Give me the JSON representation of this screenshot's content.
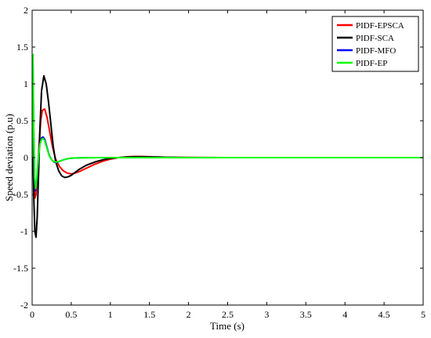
{
  "chart_data": {
    "type": "line",
    "title": "",
    "xlabel": "Time (s)",
    "ylabel": "Speed deviation (p.u)",
    "xlim": [
      0,
      5
    ],
    "ylim": [
      -2,
      2
    ],
    "xticks": [
      0,
      0.5,
      1,
      1.5,
      2,
      2.5,
      3,
      3.5,
      4,
      4.5,
      5
    ],
    "yticks": [
      -2,
      -1.5,
      -1,
      -0.5,
      0,
      0.5,
      1,
      1.5,
      2
    ],
    "xtick_labels": [
      "0",
      "0.5",
      "1",
      "1.5",
      "2",
      "2.5",
      "3",
      "3.5",
      "4",
      "4.5",
      "5"
    ],
    "ytick_labels": [
      "-2",
      "-1.5",
      "-1",
      "-0.5",
      "0",
      "0.5",
      "1",
      "1.5",
      "2"
    ],
    "grid": false,
    "legend_position": "top-right",
    "series": [
      {
        "name": "PIDF-EPSCA",
        "color": "#ff0000",
        "x": [
          0,
          0.01,
          0.02,
          0.035,
          0.05,
          0.07,
          0.09,
          0.11,
          0.13,
          0.16,
          0.19,
          0.22,
          0.26,
          0.3,
          0.35,
          0.4,
          0.45,
          0.5,
          0.55,
          0.6,
          0.7,
          0.8,
          0.9,
          1.0,
          1.1,
          1.2,
          1.3,
          1.4,
          1.5,
          1.7,
          2.0,
          2.5,
          3.0,
          4.0,
          5.0
        ],
        "y": [
          0,
          0.2,
          -0.3,
          -0.55,
          -0.5,
          -0.2,
          0.2,
          0.5,
          0.64,
          0.66,
          0.55,
          0.38,
          0.15,
          -0.02,
          -0.12,
          -0.18,
          -0.21,
          -0.22,
          -0.21,
          -0.19,
          -0.14,
          -0.09,
          -0.05,
          -0.02,
          0.0,
          0.01,
          0.015,
          0.015,
          0.012,
          0.006,
          0.002,
          0.0,
          0.0,
          0.0,
          0.0
        ]
      },
      {
        "name": "PIDF-SCA",
        "color": "#000000",
        "x": [
          0,
          0.01,
          0.02,
          0.035,
          0.05,
          0.065,
          0.08,
          0.1,
          0.12,
          0.15,
          0.18,
          0.21,
          0.24,
          0.27,
          0.3,
          0.34,
          0.38,
          0.42,
          0.46,
          0.5,
          0.55,
          0.6,
          0.7,
          0.8,
          0.9,
          1.0,
          1.1,
          1.2,
          1.3,
          1.4,
          1.5,
          1.7,
          2.0,
          2.5,
          3.0,
          4.0,
          5.0
        ],
        "y": [
          0,
          0.3,
          -0.5,
          -1.0,
          -1.08,
          -0.8,
          -0.3,
          0.4,
          0.9,
          1.11,
          1.0,
          0.75,
          0.45,
          0.15,
          -0.05,
          -0.18,
          -0.25,
          -0.27,
          -0.26,
          -0.24,
          -0.2,
          -0.16,
          -0.1,
          -0.06,
          -0.03,
          -0.01,
          0.0,
          0.008,
          0.012,
          0.012,
          0.01,
          0.005,
          0.001,
          0.0,
          0.0,
          0.0,
          0.0
        ]
      },
      {
        "name": "PIDF-MFO",
        "color": "#0000ff",
        "x": [
          0,
          0.005,
          0.01,
          0.02,
          0.03,
          0.045,
          0.06,
          0.08,
          0.1,
          0.12,
          0.14,
          0.16,
          0.18,
          0.2,
          0.22,
          0.25,
          0.28,
          0.31,
          0.35,
          0.4,
          0.45,
          0.5,
          0.6,
          0.8,
          1.0,
          1.5,
          2.0,
          3.0,
          4.0,
          5.0
        ],
        "y": [
          0,
          0.9,
          1.3,
          0.4,
          -0.3,
          -0.45,
          -0.3,
          0.0,
          0.2,
          0.27,
          0.28,
          0.25,
          0.18,
          0.1,
          0.03,
          -0.03,
          -0.06,
          -0.065,
          -0.05,
          -0.03,
          -0.015,
          -0.008,
          -0.002,
          0.0,
          0.0,
          0.0,
          0.0,
          0.0,
          0.0,
          0.0
        ]
      },
      {
        "name": "PIDF-EP",
        "color": "#00ff00",
        "x": [
          0,
          0.005,
          0.01,
          0.02,
          0.03,
          0.045,
          0.06,
          0.08,
          0.1,
          0.12,
          0.14,
          0.16,
          0.18,
          0.2,
          0.22,
          0.25,
          0.28,
          0.31,
          0.35,
          0.4,
          0.45,
          0.5,
          0.6,
          0.8,
          1.0,
          1.5,
          2.0,
          3.0,
          4.0,
          5.0
        ],
        "y": [
          0,
          1.0,
          1.4,
          0.45,
          -0.25,
          -0.42,
          -0.28,
          0.0,
          0.18,
          0.25,
          0.26,
          0.23,
          0.16,
          0.09,
          0.02,
          -0.03,
          -0.055,
          -0.06,
          -0.05,
          -0.03,
          -0.015,
          -0.007,
          -0.002,
          0.0,
          0.0,
          0.0,
          0.0,
          0.0,
          0.0,
          0.0
        ]
      }
    ]
  }
}
